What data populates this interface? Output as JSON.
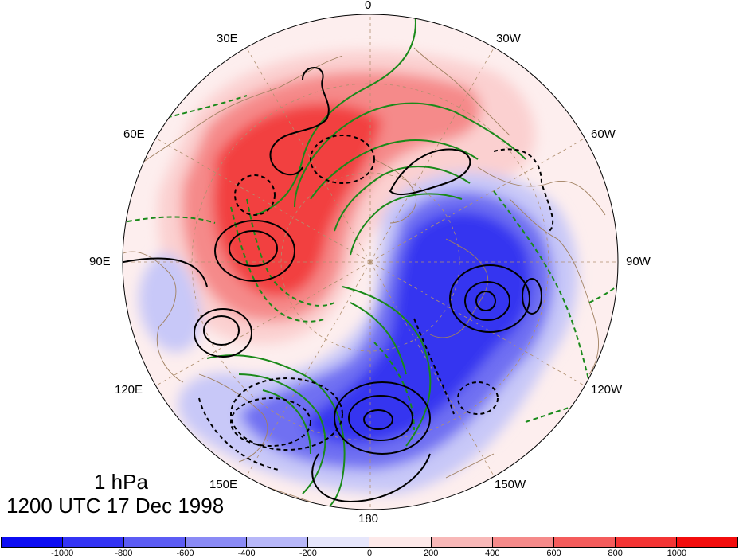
{
  "title": {
    "level": "1 hPa",
    "time": "1200 UTC 17 Dec 1998"
  },
  "longitude_labels": [
    "0",
    "30W",
    "60W",
    "90W",
    "120W",
    "150W",
    "180",
    "150E",
    "120E",
    "90E",
    "60E",
    "30E"
  ],
  "colorbar": {
    "colors": [
      "#0d0df2",
      "#3434f4",
      "#5c5cf4",
      "#8a8af5",
      "#b7b7f8",
      "#e6e6fb",
      "#fde9e9",
      "#f8b8b8",
      "#f58a8a",
      "#f45c5c",
      "#f33434",
      "#f20d0d"
    ],
    "tick_labels": [
      "-1000",
      "-800",
      "-600",
      "-400",
      "-200",
      "0",
      "200",
      "400",
      "600",
      "800",
      "1000"
    ]
  },
  "field_colors": {
    "positive_strong": "#f24040",
    "positive_mid": "#f58a8a",
    "positive_weak": "#fbd0d0",
    "negative_strong": "#3535f0",
    "negative_mid": "#7070f2",
    "negative_weak": "#c8c8f8",
    "contour_black": "#000000",
    "contour_green": "#1a8a1a",
    "coastline": "#a08060",
    "graticule": "#b09070"
  }
}
